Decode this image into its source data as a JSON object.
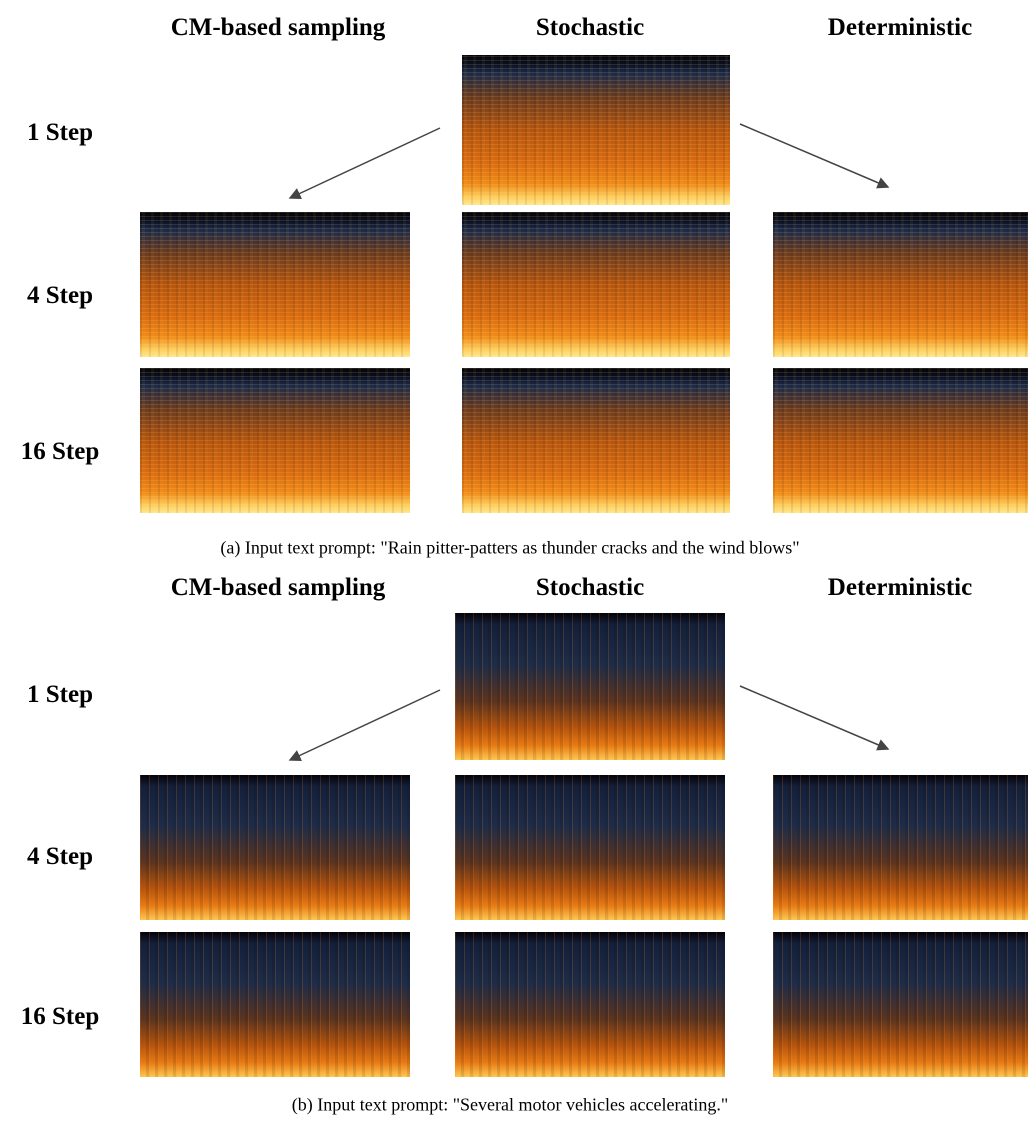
{
  "panels": [
    {
      "column_headers": [
        "CM-based sampling",
        "Stochastic",
        "Deterministic"
      ],
      "row_labels": [
        "1 Step",
        "4 Step",
        "16 Step"
      ],
      "caption": "(a) Input text prompt: \"Rain pitter-patters as thunder cracks and the wind blows\""
    },
    {
      "column_headers": [
        "CM-based sampling",
        "Stochastic",
        "Deterministic"
      ],
      "row_labels": [
        "1 Step",
        "4 Step",
        "16 Step"
      ],
      "caption": "(b) Input text prompt: \"Several motor vehicles accelerating.\""
    }
  ]
}
